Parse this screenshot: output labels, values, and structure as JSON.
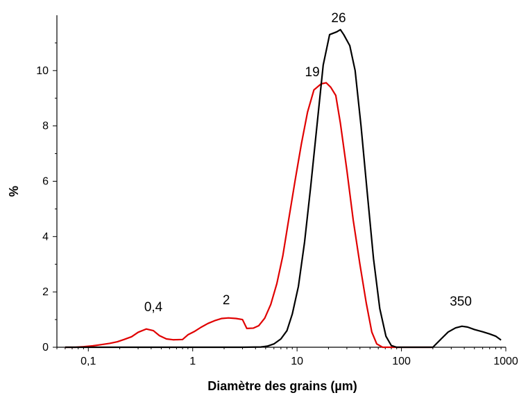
{
  "chart_data": {
    "type": "line",
    "title": "",
    "xlabel": "Diamètre des grains (µm)",
    "ylabel": "%",
    "x_scale": "log",
    "xlim": [
      0.05,
      1000
    ],
    "ylim": [
      0,
      12
    ],
    "x_ticks": [
      {
        "value": 0.1,
        "label": "0,1"
      },
      {
        "value": 1,
        "label": "1"
      },
      {
        "value": 10,
        "label": "10"
      },
      {
        "value": 100,
        "label": "100"
      },
      {
        "value": 1000,
        "label": "1000"
      }
    ],
    "y_ticks": [
      {
        "value": 0,
        "label": "0"
      },
      {
        "value": 2,
        "label": "2"
      },
      {
        "value": 4,
        "label": "4"
      },
      {
        "value": 6,
        "label": "6"
      },
      {
        "value": 8,
        "label": "8"
      },
      {
        "value": 10,
        "label": "10"
      }
    ],
    "grid": false,
    "legend": "none",
    "series": [
      {
        "color": "#e00000",
        "points": [
          [
            0.06,
            0
          ],
          [
            0.075,
            0
          ],
          [
            0.09,
            0.02
          ],
          [
            0.11,
            0.05
          ],
          [
            0.13,
            0.09
          ],
          [
            0.16,
            0.14
          ],
          [
            0.19,
            0.2
          ],
          [
            0.22,
            0.28
          ],
          [
            0.26,
            0.38
          ],
          [
            0.3,
            0.54
          ],
          [
            0.36,
            0.66
          ],
          [
            0.42,
            0.6
          ],
          [
            0.48,
            0.42
          ],
          [
            0.56,
            0.3
          ],
          [
            0.65,
            0.27
          ],
          [
            0.8,
            0.28
          ],
          [
            0.9,
            0.45
          ],
          [
            1.05,
            0.58
          ],
          [
            1.2,
            0.72
          ],
          [
            1.4,
            0.86
          ],
          [
            1.65,
            0.97
          ],
          [
            1.9,
            1.04
          ],
          [
            2.2,
            1.06
          ],
          [
            2.6,
            1.04
          ],
          [
            3.0,
            1.0
          ],
          [
            3.3,
            0.68
          ],
          [
            3.8,
            0.69
          ],
          [
            4.3,
            0.78
          ],
          [
            4.9,
            1.05
          ],
          [
            5.6,
            1.55
          ],
          [
            6.4,
            2.3
          ],
          [
            7.3,
            3.3
          ],
          [
            8.3,
            4.6
          ],
          [
            9.6,
            6.05
          ],
          [
            11,
            7.35
          ],
          [
            12.6,
            8.5
          ],
          [
            14.5,
            9.3
          ],
          [
            17,
            9.52
          ],
          [
            19,
            9.56
          ],
          [
            21,
            9.4
          ],
          [
            23.5,
            9.1
          ],
          [
            26,
            8.1
          ],
          [
            30,
            6.4
          ],
          [
            34.5,
            4.6
          ],
          [
            40,
            3.0
          ],
          [
            46,
            1.6
          ],
          [
            52,
            0.55
          ],
          [
            58,
            0.12
          ],
          [
            66,
            0.0
          ],
          [
            80,
            0
          ],
          [
            100,
            0
          ],
          [
            200,
            0
          ]
        ]
      },
      {
        "color": "#000000",
        "points": [
          [
            0.06,
            0
          ],
          [
            0.1,
            0
          ],
          [
            1,
            0
          ],
          [
            3,
            0
          ],
          [
            4.5,
            0.01
          ],
          [
            5.2,
            0.04
          ],
          [
            6,
            0.12
          ],
          [
            7,
            0.3
          ],
          [
            8,
            0.6
          ],
          [
            9,
            1.2
          ],
          [
            10.3,
            2.2
          ],
          [
            11.8,
            3.8
          ],
          [
            13.5,
            5.8
          ],
          [
            15.5,
            8.0
          ],
          [
            17.8,
            10.2
          ],
          [
            20.5,
            11.3
          ],
          [
            24,
            11.4
          ],
          [
            26,
            11.48
          ],
          [
            28,
            11.3
          ],
          [
            32,
            10.9
          ],
          [
            36,
            10.0
          ],
          [
            41,
            8.0
          ],
          [
            47,
            5.6
          ],
          [
            54,
            3.2
          ],
          [
            62,
            1.4
          ],
          [
            71,
            0.4
          ],
          [
            80,
            0.06
          ],
          [
            90,
            0
          ],
          [
            200,
            0
          ],
          [
            240,
            0.3
          ],
          [
            280,
            0.55
          ],
          [
            330,
            0.7
          ],
          [
            380,
            0.76
          ],
          [
            430,
            0.73
          ],
          [
            500,
            0.64
          ],
          [
            600,
            0.56
          ],
          [
            700,
            0.48
          ],
          [
            800,
            0.4
          ],
          [
            900,
            0.26
          ]
        ]
      }
    ],
    "annotations": [
      {
        "text": "0,4",
        "x": 0.42,
        "y": 1.3
      },
      {
        "text": "2",
        "x": 2.1,
        "y": 1.55
      },
      {
        "text": "19",
        "x": 14,
        "y": 9.8
      },
      {
        "text": "26",
        "x": 25,
        "y": 11.75
      },
      {
        "text": "350",
        "x": 370,
        "y": 1.5
      }
    ]
  }
}
